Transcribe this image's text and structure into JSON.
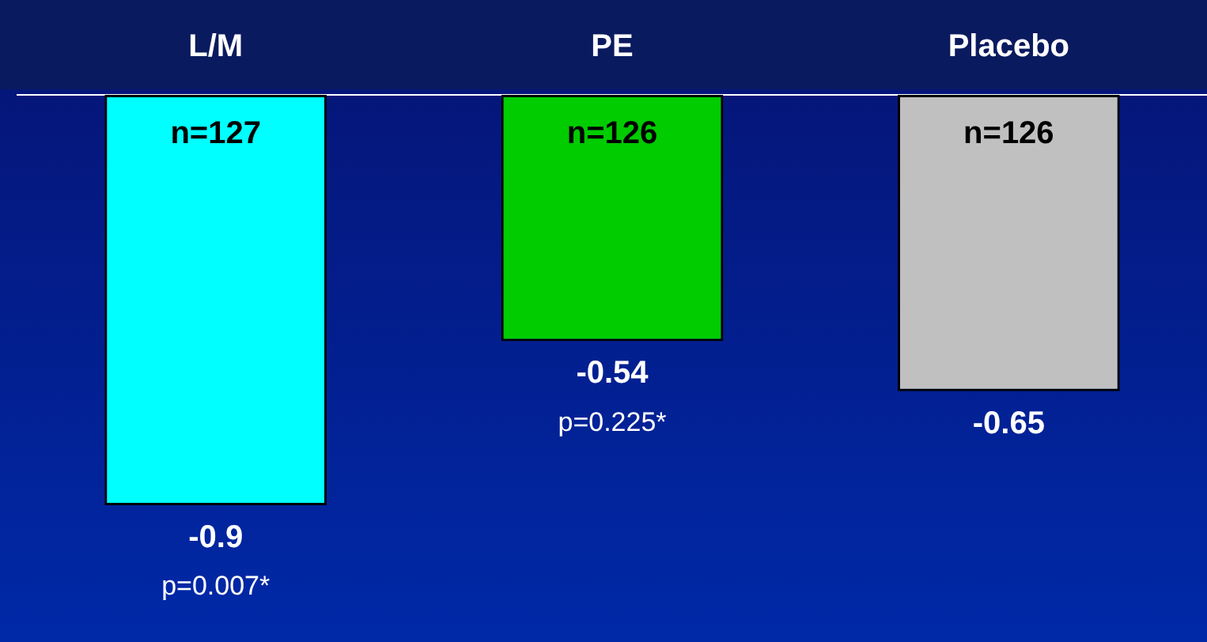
{
  "chart_data": {
    "type": "bar",
    "categories": [
      "L/M",
      "PE",
      "Placebo"
    ],
    "values": [
      -0.9,
      -0.54,
      -0.65
    ],
    "colors": [
      "#00ffff",
      "#00cc00",
      "#c0c0c0"
    ],
    "data_labels": true,
    "tick_labels": "x",
    "grid": false,
    "legend": false,
    "annotations": [
      "n=127",
      "n=126",
      "n=126",
      "p=0.007*",
      "p=0.225*"
    ]
  }
}
